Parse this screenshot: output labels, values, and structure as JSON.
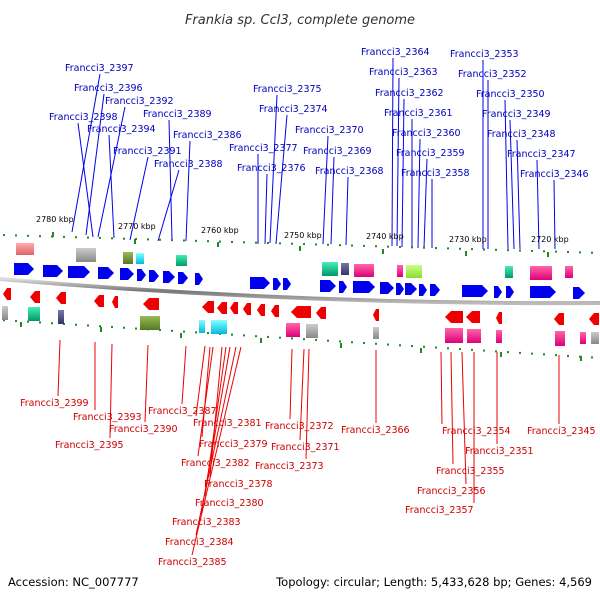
{
  "title": "Frankia sp. CcI3, complete genome",
  "accession_label": "Accession: NC_007777",
  "topology_label": "Topology: circular; Length: 5,433,628 bp; Genes: 4,569",
  "colors": {
    "forward": "#0000ee",
    "reverse": "#ee0000",
    "top_label": "#0000bb",
    "bottom_label": "#cc0000",
    "backbone": "#888888",
    "tick": "#228822"
  },
  "kbp_ticks": [
    "2780 kbp",
    "2770 kbp",
    "2760 kbp",
    "2750 kbp",
    "2740 kbp",
    "2730 kbp",
    "2720 kbp"
  ],
  "top_labels": [
    "Francci3_2397",
    "Francci3_2396",
    "Francci3_2392",
    "Francci3_2398",
    "Francci3_2389",
    "Francci3_2394",
    "Francci3_2386",
    "Francci3_2391",
    "Francci3_2388",
    "Francci3_2375",
    "Francci3_2374",
    "Francci3_2370",
    "Francci3_2377",
    "Francci3_2369",
    "Francci3_2376",
    "Francci3_2368",
    "Francci3_2364",
    "Francci3_2363",
    "Francci3_2362",
    "Francci3_2361",
    "Francci3_2360",
    "Francci3_2359",
    "Francci3_2358",
    "Francci3_2353",
    "Francci3_2352",
    "Francci3_2350",
    "Francci3_2349",
    "Francci3_2348",
    "Francci3_2347",
    "Francci3_2346"
  ],
  "bottom_labels": [
    "Francci3_2399",
    "Francci3_2393",
    "Francci3_2395",
    "Francci3_2390",
    "Francci3_2387",
    "Francci3_2381",
    "Francci3_2379",
    "Francci3_2382",
    "Francci3_2378",
    "Francci3_2380",
    "Francci3_2383",
    "Francci3_2384",
    "Francci3_2385",
    "Francci3_2372",
    "Francci3_2371",
    "Francci3_2373",
    "Francci3_2366",
    "Francci3_2354",
    "Francci3_2355",
    "Francci3_2356",
    "Francci3_2357",
    "Francci3_2351",
    "Francci3_2345"
  ]
}
